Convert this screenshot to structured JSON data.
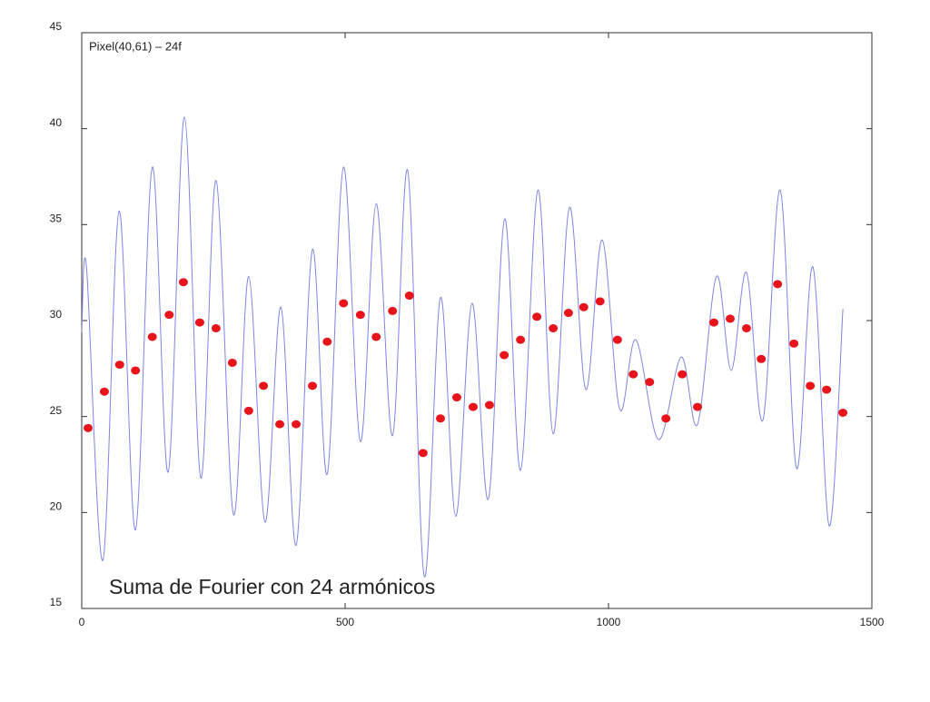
{
  "chart_data": {
    "type": "scatter",
    "title": "Suma de Fourier con 24 armónicos",
    "annotations": [
      "Pixel(40,61) – 24f"
    ],
    "xlim": [
      0,
      1500
    ],
    "xticks": [
      0,
      500,
      1000,
      1500
    ],
    "ylim": [
      15,
      45
    ],
    "yticks": [
      15,
      20,
      25,
      30,
      35,
      40,
      45
    ],
    "grid": false,
    "series": [
      {
        "type": "line",
        "color": "#7b86e0",
        "x": [
          0,
          9,
          40,
          71,
          102,
          134,
          164,
          195,
          226,
          255,
          288,
          317,
          348,
          378,
          407,
          438,
          466,
          497,
          529,
          559,
          590,
          619,
          650,
          681,
          710,
          741,
          772,
          803,
          833,
          866,
          895,
          926,
          957,
          988,
          1021,
          1052,
          1095,
          1138,
          1169,
          1205,
          1233,
          1262,
          1293,
          1326,
          1357,
          1388,
          1419,
          1445
        ],
        "values": [
          29.4,
          32.8,
          17.5,
          35.7,
          19.1,
          38.0,
          22.1,
          40.6,
          21.8,
          37.3,
          19.9,
          32.3,
          19.5,
          30.7,
          18.3,
          33.7,
          22.0,
          38.0,
          23.7,
          36.1,
          24.0,
          37.8,
          16.7,
          31.2,
          19.8,
          30.9,
          20.7,
          35.3,
          22.2,
          36.8,
          24.1,
          35.9,
          26.4,
          34.2,
          25.4,
          29.0,
          23.8,
          28.1,
          24.6,
          32.3,
          27.4,
          32.5,
          24.8,
          36.8,
          22.3,
          32.8,
          19.3,
          30.6
        ]
      },
      {
        "type": "scatter",
        "color": "#e8141b",
        "x": [
          12,
          43,
          72,
          102,
          134,
          166,
          193,
          224,
          255,
          286,
          317,
          345,
          376,
          407,
          438,
          466,
          497,
          529,
          559,
          590,
          622,
          648,
          681,
          712,
          743,
          774,
          802,
          833,
          864,
          895,
          924,
          953,
          984,
          1017,
          1047,
          1078,
          1109,
          1140,
          1169,
          1200,
          1231,
          1262,
          1290,
          1321,
          1352,
          1383,
          1414,
          1445
        ],
        "values": [
          24.4,
          26.3,
          27.7,
          27.4,
          29.15,
          30.3,
          32.0,
          29.9,
          29.6,
          27.8,
          25.3,
          26.6,
          24.6,
          24.6,
          26.6,
          28.9,
          30.9,
          30.3,
          29.15,
          30.5,
          31.3,
          23.1,
          24.9,
          26.0,
          25.5,
          25.6,
          28.2,
          29.0,
          30.2,
          29.6,
          30.4,
          30.7,
          31.0,
          29.0,
          27.2,
          26.8,
          24.9,
          27.2,
          25.5,
          29.9,
          30.1,
          29.6,
          28.0,
          31.9,
          28.8,
          26.6,
          26.4,
          25.2
        ]
      }
    ]
  }
}
